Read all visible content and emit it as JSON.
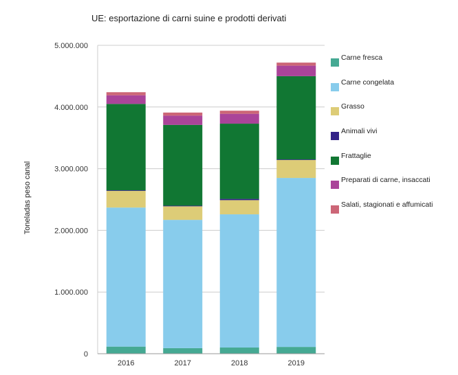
{
  "chart_data": {
    "type": "bar",
    "stacked": true,
    "title": "UE: esportazione di carni suine e prodotti derivati",
    "xlabel": "",
    "ylabel": "Toneladas peso canal",
    "ylim": [
      0,
      5000000
    ],
    "yticks": [
      0,
      1000000,
      2000000,
      3000000,
      4000000,
      5000000
    ],
    "ytick_labels": [
      "0",
      "1.000.000",
      "2.000.000",
      "3.000.000",
      "4.000.000",
      "5.000.000"
    ],
    "grid": true,
    "legend_position": "right",
    "categories": [
      "2016",
      "2017",
      "2018",
      "2019"
    ],
    "series": [
      {
        "name": "Carne fresca",
        "color": "#45a993",
        "values": [
          115000,
          90000,
          100000,
          110000
        ]
      },
      {
        "name": "Carne congelata",
        "color": "#88ccec",
        "values": [
          2255000,
          2080000,
          2160000,
          2740000
        ]
      },
      {
        "name": "Grasso",
        "color": "#ddcc77",
        "values": [
          270000,
          220000,
          230000,
          290000
        ]
      },
      {
        "name": "Animali vivi",
        "color": "#332288",
        "values": [
          10000,
          10000,
          20000,
          10000
        ]
      },
      {
        "name": "Frattaglie",
        "color": "#117733",
        "values": [
          1400000,
          1310000,
          1220000,
          1350000
        ]
      },
      {
        "name": "Preparati di carne, insaccati",
        "color": "#aa4499",
        "values": [
          140000,
          150000,
          160000,
          170000
        ]
      },
      {
        "name": "Salati, stagionati e affumicati",
        "color": "#cc6677",
        "values": [
          50000,
          50000,
          50000,
          50000
        ]
      }
    ]
  }
}
